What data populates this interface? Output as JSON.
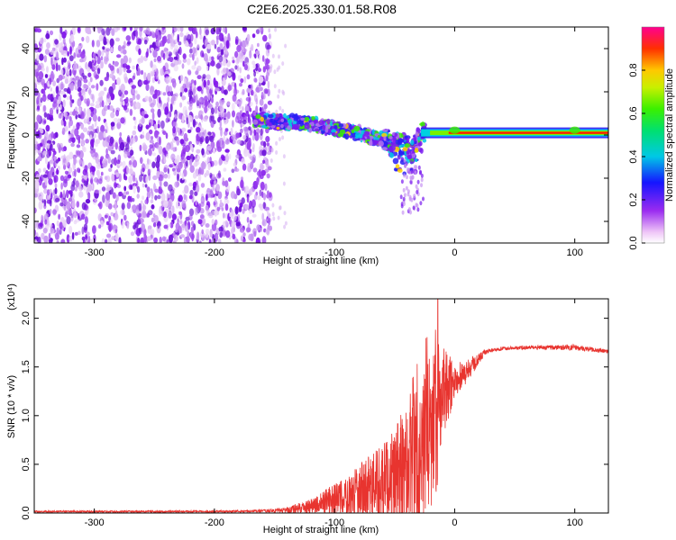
{
  "title": "C2E6.2025.330.01.58.R08",
  "chart_data": [
    {
      "type": "heatmap",
      "xlabel": "Height of straight line (km)",
      "ylabel": "Frequency (Hz)",
      "xlim": [
        -350,
        128
      ],
      "ylim": [
        -50,
        50
      ],
      "xticks": [
        -300,
        -200,
        -100,
        0,
        100
      ],
      "yticks": [
        -40,
        -20,
        0,
        20,
        40
      ],
      "noise_region_x": [
        -350,
        -153
      ],
      "signal_track": {
        "x": [
          -160,
          -150,
          -140,
          -130,
          -120,
          -110,
          -100,
          -90,
          -80,
          -70,
          -60,
          -50,
          -45,
          -40,
          -35,
          -30,
          -25,
          -20,
          -10,
          0,
          10,
          50,
          100,
          128
        ],
        "freq": [
          7,
          6,
          6,
          6,
          5,
          4,
          3,
          2,
          1,
          -1,
          -2,
          -3,
          -4,
          -5,
          -8,
          0,
          1,
          1,
          1,
          1,
          1,
          1,
          1,
          1
        ]
      },
      "colorbar": {
        "label": "Normalized spectral amplitude",
        "range": [
          0,
          1
        ],
        "ticks": [
          0.0,
          0.2,
          0.4,
          0.6,
          0.8
        ]
      }
    },
    {
      "type": "line",
      "xlabel": "Height of straight line (km)",
      "ylabel": "SNR (10 * v/v)",
      "multiplier": "(x10⁴)",
      "xlim": [
        -350,
        128
      ],
      "ylim": [
        0,
        2.2
      ],
      "xticks": [
        -300,
        -200,
        -100,
        0,
        100
      ],
      "yticks": [
        0.0,
        0.5,
        1.0,
        1.5,
        2.0
      ],
      "color": "#e8342f",
      "envelope": {
        "x": [
          -350,
          -200,
          -160,
          -140,
          -120,
          -110,
          -100,
          -90,
          -80,
          -70,
          -60,
          -50,
          -40,
          -35,
          -30,
          -25,
          -20,
          -15,
          -12,
          -10,
          -5,
          0,
          10,
          20,
          25,
          30,
          40,
          60,
          100,
          128
        ],
        "mean": [
          0.015,
          0.015,
          0.02,
          0.03,
          0.07,
          0.1,
          0.13,
          0.15,
          0.2,
          0.25,
          0.3,
          0.38,
          0.48,
          0.6,
          0.72,
          0.85,
          0.95,
          1.05,
          1.15,
          1.2,
          1.3,
          1.36,
          1.45,
          1.58,
          1.65,
          1.67,
          1.69,
          1.7,
          1.7,
          1.66
        ],
        "amp": [
          0.01,
          0.01,
          0.015,
          0.03,
          0.08,
          0.12,
          0.18,
          0.2,
          0.3,
          0.35,
          0.4,
          0.5,
          0.7,
          0.85,
          0.95,
          0.95,
          0.9,
          0.85,
          0.7,
          0.5,
          0.35,
          0.2,
          0.12,
          0.06,
          0.03,
          0.02,
          0.02,
          0.02,
          0.03,
          0.02
        ]
      },
      "peak": {
        "x": -14,
        "y": 2.2
      }
    }
  ]
}
